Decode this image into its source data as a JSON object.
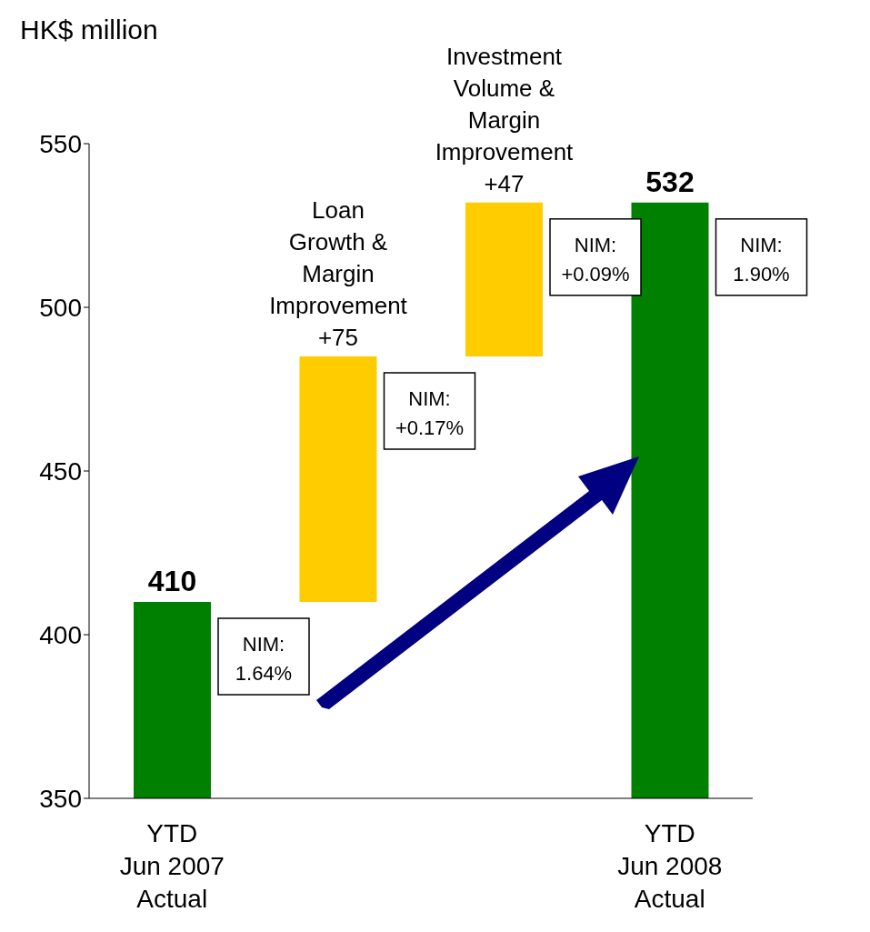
{
  "chart_data": {
    "type": "bar",
    "ylabel": "HK$ million",
    "categories": [
      "YTD\nJun 2007\nActual",
      null,
      null,
      "YTD\nJun 2008\nActual"
    ],
    "values": [
      410,
      75,
      47,
      532
    ],
    "base": [
      null,
      410,
      485,
      null
    ],
    "colors": [
      "#008000",
      "#ffcc00",
      "#ffcc00",
      "#008000"
    ],
    "value_labels": [
      "410",
      "Loan\nGrowth &\nMargin\nImprovement\n+75",
      "Investment\nVolume &\nMargin\nImprovement\n+47",
      "532"
    ],
    "annotations": [
      "NIM:\n1.64%",
      "NIM:\n+0.17%",
      "NIM:\n+0.09%",
      "NIM:\n1.90%"
    ],
    "ylim": [
      350,
      550
    ],
    "yticks": [
      350,
      400,
      450,
      500,
      550
    ]
  }
}
